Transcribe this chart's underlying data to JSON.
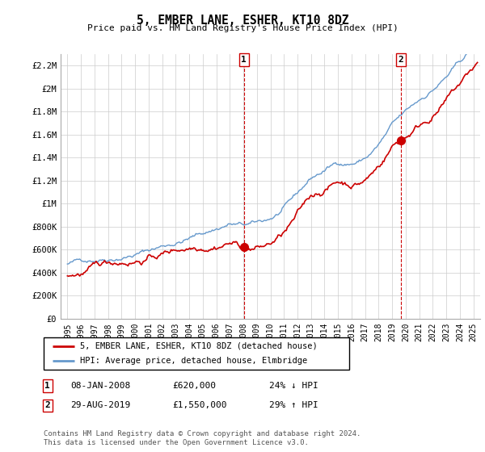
{
  "title": "5, EMBER LANE, ESHER, KT10 8DZ",
  "subtitle": "Price paid vs. HM Land Registry's House Price Index (HPI)",
  "ylim": [
    0,
    2300000
  ],
  "yticks": [
    0,
    200000,
    400000,
    600000,
    800000,
    1000000,
    1200000,
    1400000,
    1600000,
    1800000,
    2000000,
    2200000
  ],
  "ytick_labels": [
    "£0",
    "£200K",
    "£400K",
    "£600K",
    "£800K",
    "£1M",
    "£1.2M",
    "£1.4M",
    "£1.6M",
    "£1.8M",
    "£2M",
    "£2.2M"
  ],
  "xlim_start": 1994.5,
  "xlim_end": 2025.5,
  "legend_line1": "5, EMBER LANE, ESHER, KT10 8DZ (detached house)",
  "legend_line2": "HPI: Average price, detached house, Elmbridge",
  "sale1_date": "08-JAN-2008",
  "sale1_price": "£620,000",
  "sale1_hpi": "24% ↓ HPI",
  "sale2_date": "29-AUG-2019",
  "sale2_price": "£1,550,000",
  "sale2_hpi": "29% ↑ HPI",
  "footer": "Contains HM Land Registry data © Crown copyright and database right 2024.\nThis data is licensed under the Open Government Licence v3.0.",
  "line_color_red": "#cc0000",
  "line_color_blue": "#6699cc",
  "background_color": "#ffffff",
  "grid_color": "#cccccc",
  "sale1_x": 2008.04,
  "sale1_y": 620000,
  "sale2_x": 2019.66,
  "sale2_y": 1550000
}
